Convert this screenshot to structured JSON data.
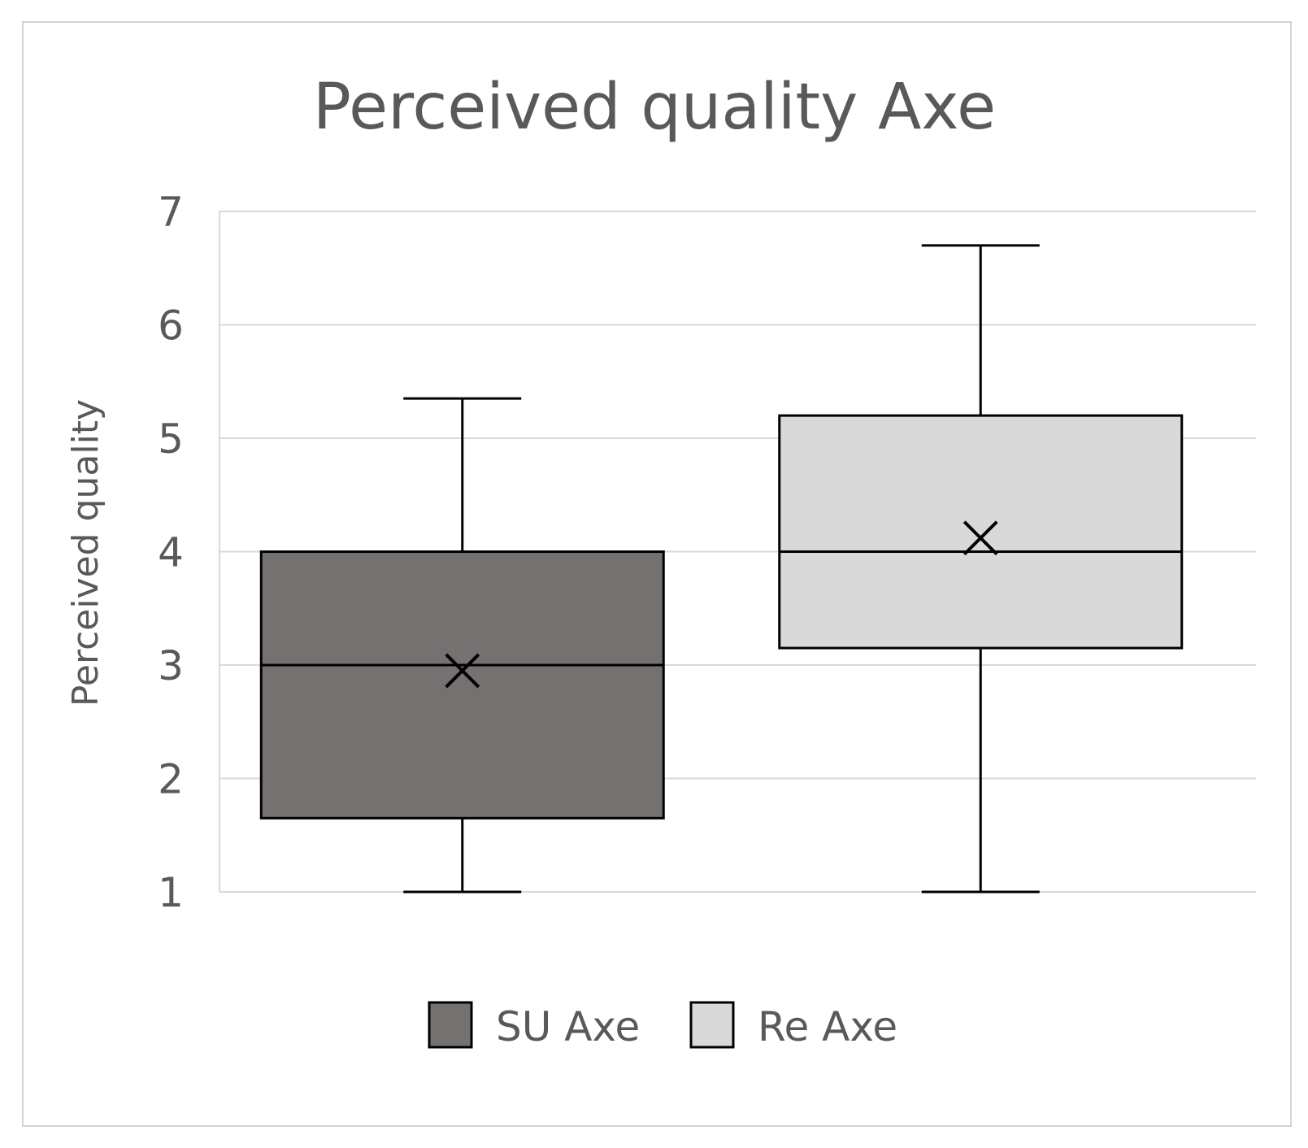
{
  "chart_data": {
    "type": "box",
    "title": "Perceived quality Axe",
    "ylabel": "Perceived quality",
    "xlabel": "",
    "ylim": [
      1,
      7
    ],
    "yticks": [
      1,
      2,
      3,
      4,
      5,
      6,
      7
    ],
    "grid": true,
    "legend_position": "bottom",
    "series": [
      {
        "name": "SU Axe",
        "min": 1,
        "q1": 1.65,
        "median": 3,
        "q3": 4,
        "max": 5.35,
        "mean": 2.95,
        "color": "#767171"
      },
      {
        "name": "Re Axe",
        "min": 1,
        "q1": 3.15,
        "median": 4,
        "q3": 5.2,
        "max": 6.7,
        "mean": 4.12,
        "color": "#d9d9d9"
      }
    ]
  }
}
